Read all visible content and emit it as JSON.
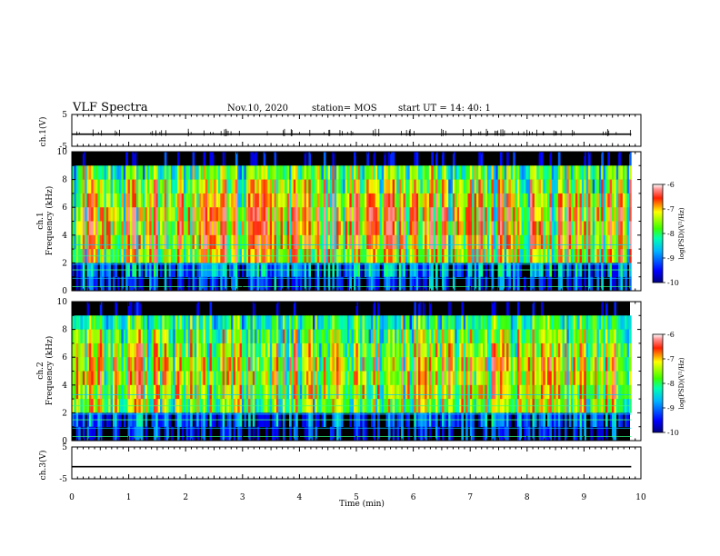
{
  "header": {
    "title": "VLF Spectra",
    "date": "Nov.10, 2020",
    "station": "station= MOS",
    "start": "start  UT =   14: 40: 1"
  },
  "chart_data": [
    {
      "type": "line",
      "name": "ch1-waveform",
      "ylabel": "ch.1(V)",
      "ylim": [
        -5,
        5
      ],
      "y_ticks": [
        "5",
        "-5"
      ],
      "xlim": [
        0,
        10
      ],
      "x": [
        0,
        9.83
      ],
      "values": [
        -1.2,
        -1.2
      ]
    },
    {
      "type": "heatmap",
      "name": "ch1-spectrogram",
      "ylabel": "ch.1\nFrequency (kHz)",
      "ylim": [
        0,
        10
      ],
      "y_ticks": [
        "0",
        "2",
        "4",
        "6",
        "8",
        "10"
      ],
      "xlim": [
        0,
        9.83
      ],
      "colorbar": {
        "label": "log(PSD)(V²/Hz)",
        "range": [
          -10,
          -6
        ],
        "ticks": [
          "-6",
          "-7",
          "-8",
          "-9",
          "-10"
        ]
      }
    },
    {
      "type": "heatmap",
      "name": "ch2-spectrogram",
      "ylabel": "ch.2\nFrequency (kHz)",
      "ylim": [
        0,
        10
      ],
      "y_ticks": [
        "0",
        "2",
        "4",
        "6",
        "8",
        "10"
      ],
      "xlim": [
        0,
        9.83
      ],
      "colorbar": {
        "label": "log(PSD)(V²/Hz)",
        "range": [
          -10,
          -6
        ],
        "ticks": [
          "-6",
          "-7",
          "-8",
          "-9",
          "-10"
        ]
      }
    },
    {
      "type": "line",
      "name": "ch3-waveform",
      "ylabel": "ch.3(V)",
      "ylim": [
        -5,
        5
      ],
      "y_ticks": [
        "5",
        "-5"
      ],
      "xlim": [
        0,
        10
      ],
      "x": [
        0,
        9.83
      ],
      "values": [
        -1.2,
        -1.2
      ],
      "xlabel": "Time (min)",
      "x_ticks": [
        "0",
        "1",
        "2",
        "3",
        "4",
        "5",
        "6",
        "7",
        "8",
        "9",
        "10"
      ]
    }
  ],
  "labels": {
    "ch1_axis": "ch.1(V)",
    "ch1_freq": "ch.1",
    "ch1_freq2": "Frequency (kHz)",
    "ch2_freq": "ch.2",
    "ch2_freq2": "Frequency (kHz)",
    "ch3_axis": "ch.3(V)",
    "xlabel": "Time (min)",
    "cbar_label": "log(PSD)(V²/Hz)"
  }
}
